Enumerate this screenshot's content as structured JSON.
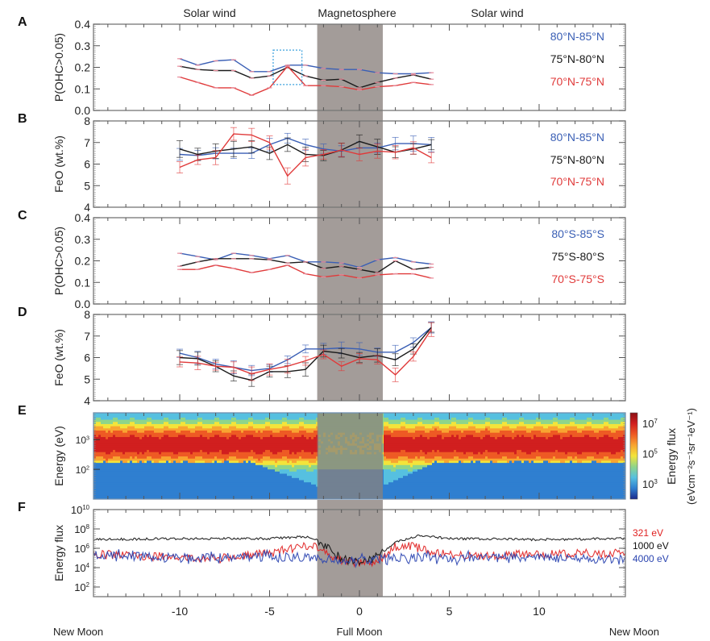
{
  "chart_data": {
    "type": "line",
    "x_axis": {
      "range": [
        -14.8,
        14.8
      ],
      "ticks": [
        -10,
        -5,
        0,
        5,
        10
      ],
      "tick_labels": [
        "-10",
        "-5",
        "0",
        "5",
        "10"
      ],
      "bottom_labels": [
        {
          "x": -14.8,
          "text": "New Moon"
        },
        {
          "x": 0,
          "text": "Full Moon"
        },
        {
          "x": 14.8,
          "text": "New Moon"
        }
      ]
    },
    "region_labels": [
      {
        "x": -10.5,
        "text": "Solar wind"
      },
      {
        "x": -0.5,
        "text": "Magnetosphere"
      },
      {
        "x": 10,
        "text": "Solar wind"
      }
    ],
    "magnetosphere_range": [
      -2.35,
      1.3
    ],
    "panels": [
      {
        "id": "A",
        "type": "line",
        "ylabel": "P(OHC>0.05)",
        "ylim": [
          0.0,
          0.4
        ],
        "yticks": [
          "0.0",
          "0.1",
          "0.2",
          "0.3",
          "0.4"
        ],
        "ytick_values": [
          0,
          0.1,
          0.2,
          0.3,
          0.4
        ],
        "x": [
          -10,
          -9,
          -8,
          -7,
          -6,
          -5,
          -4,
          -3,
          -2,
          -1,
          0,
          1,
          2,
          3,
          4
        ],
        "highlight_box": {
          "x": [
            -4.8,
            -3.2
          ],
          "y": [
            0.12,
            0.28
          ]
        },
        "series": [
          {
            "name": "80°N-85°N",
            "color": "#3a5fb5",
            "values": [
              0.24,
              0.21,
              0.23,
              0.235,
              0.18,
              0.18,
              0.21,
              0.21,
              0.195,
              0.19,
              0.19,
              0.175,
              0.17,
              0.17,
              0.175
            ]
          },
          {
            "name": "75°N-80°N",
            "color": "#1a1a1a",
            "values": [
              0.205,
              0.19,
              0.185,
              0.185,
              0.15,
              0.16,
              0.2,
              0.16,
              0.14,
              0.145,
              0.105,
              0.13,
              0.15,
              0.165,
              0.145
            ]
          },
          {
            "name": "70°N-75°N",
            "color": "#e03a3a",
            "values": [
              0.155,
              0.13,
              0.105,
              0.105,
              0.07,
              0.105,
              0.205,
              0.115,
              0.115,
              0.11,
              0.095,
              0.11,
              0.115,
              0.13,
              0.12
            ]
          }
        ]
      },
      {
        "id": "B",
        "type": "line",
        "ylabel": "FeO (wt.%)",
        "ylim": [
          4,
          8
        ],
        "yticks": [
          "4",
          "5",
          "6",
          "7",
          "8"
        ],
        "ytick_values": [
          4,
          5,
          6,
          7,
          8
        ],
        "x": [
          -10,
          -9,
          -8,
          -7,
          -6,
          -5,
          -4,
          -3,
          -2,
          -1,
          0,
          1,
          2,
          3,
          4
        ],
        "error": 0.3,
        "series": [
          {
            "name": "80°N-85°N",
            "color": "#3a5fb5",
            "values": [
              6.45,
              6.4,
              6.5,
              6.5,
              6.5,
              6.9,
              7.2,
              6.9,
              6.7,
              6.6,
              6.75,
              6.75,
              6.95,
              6.95,
              6.9
            ]
          },
          {
            "name": "75°N-80°N",
            "color": "#1a1a1a",
            "values": [
              6.7,
              6.45,
              6.6,
              6.7,
              6.8,
              6.5,
              6.9,
              6.45,
              6.4,
              6.65,
              7.05,
              6.8,
              6.55,
              6.7,
              6.9
            ]
          },
          {
            "name": "70°N-75°N",
            "color": "#e03a3a",
            "values": [
              5.85,
              6.2,
              6.3,
              7.4,
              7.35,
              7.0,
              5.45,
              6.3,
              6.45,
              6.65,
              6.45,
              6.6,
              6.55,
              6.75,
              6.3
            ]
          }
        ]
      },
      {
        "id": "C",
        "type": "line",
        "ylabel": "P(OHC>0.05)",
        "ylim": [
          0.0,
          0.4
        ],
        "yticks": [
          "0.0",
          "0.1",
          "0.2",
          "0.3",
          "0.4"
        ],
        "ytick_values": [
          0,
          0.1,
          0.2,
          0.3,
          0.4
        ],
        "x": [
          -10,
          -9,
          -8,
          -7,
          -6,
          -5,
          -4,
          -3,
          -2,
          -1,
          0,
          1,
          2,
          3,
          4
        ],
        "series": [
          {
            "name": "80°S-85°S",
            "color": "#3a5fb5",
            "values": [
              0.235,
              0.22,
              0.205,
              0.235,
              0.225,
              0.21,
              0.225,
              0.195,
              0.195,
              0.19,
              0.17,
              0.205,
              0.215,
              0.195,
              0.185
            ]
          },
          {
            "name": "75°S-80°S",
            "color": "#1a1a1a",
            "values": [
              0.175,
              0.195,
              0.21,
              0.21,
              0.21,
              0.205,
              0.19,
              0.195,
              0.165,
              0.175,
              0.16,
              0.145,
              0.2,
              0.16,
              0.17
            ]
          },
          {
            "name": "70°S-75°S",
            "color": "#e03a3a",
            "values": [
              0.16,
              0.16,
              0.18,
              0.165,
              0.145,
              0.16,
              0.18,
              0.14,
              0.125,
              0.135,
              0.12,
              0.135,
              0.14,
              0.14,
              0.12
            ]
          }
        ]
      },
      {
        "id": "D",
        "type": "line",
        "ylabel": "FeO (wt.%)",
        "ylim": [
          4,
          8
        ],
        "yticks": [
          "4",
          "5",
          "6",
          "7",
          "8"
        ],
        "ytick_values": [
          4,
          5,
          6,
          7,
          8
        ],
        "x": [
          -10,
          -9,
          -8,
          -7,
          -6,
          -5,
          -4,
          -3,
          -2,
          -1,
          0,
          1,
          2,
          3,
          4
        ],
        "error": 0.25,
        "series": [
          {
            "name": "80°S-85°S",
            "color": "#3a5fb5",
            "values": [
              6.2,
              6.0,
              5.7,
              5.55,
              5.4,
              5.5,
              5.9,
              6.4,
              6.4,
              6.45,
              6.4,
              6.25,
              6.25,
              6.7,
              7.4
            ]
          },
          {
            "name": "75°S-80°S",
            "color": "#1a1a1a",
            "values": [
              6.0,
              5.95,
              5.6,
              5.15,
              4.95,
              5.35,
              5.35,
              5.45,
              6.3,
              6.2,
              6.0,
              6.1,
              5.9,
              6.4,
              7.4
            ]
          },
          {
            "name": "70°S-75°S",
            "color": "#e03a3a",
            "values": [
              5.8,
              5.75,
              5.6,
              5.55,
              5.25,
              5.45,
              5.6,
              5.85,
              6.15,
              5.6,
              5.95,
              5.9,
              5.2,
              6.05,
              7.3
            ]
          }
        ]
      },
      {
        "id": "E",
        "type": "heatmap",
        "ylabel": "Energy (eV)",
        "yscale": "log",
        "ylim_log10": [
          1.0,
          3.9
        ],
        "yticks": [
          {
            "exp": 2,
            "label": "10",
            "sup": "2"
          },
          {
            "exp": 3,
            "label": "10",
            "sup": "3"
          }
        ],
        "colorbar": {
          "label": "Energy flux",
          "units_label": "(eVcm⁻²s⁻¹sr⁻¹eV⁻¹)",
          "range_log10": [
            2,
            7.7
          ],
          "ticks": [
            {
              "exp": 7,
              "label": "10",
              "sup": "7"
            },
            {
              "exp": 5,
              "label": "10",
              "sup": "5"
            },
            {
              "exp": 3,
              "label": "10",
              "sup": "3"
            }
          ],
          "colors": [
            "#1a2a8c",
            "#2f7fd0",
            "#56c0e0",
            "#8fd58a",
            "#f3e43a",
            "#f8a431",
            "#ee5a24",
            "#d11f1f",
            "#8b0f14"
          ]
        },
        "band_description": "Solar-wind peak flux near 10^3 eV; depleted inside magnetosphere"
      },
      {
        "id": "F",
        "type": "line",
        "ylabel": "Energy flux",
        "yscale": "log",
        "ylim_log10": [
          1,
          10
        ],
        "yticks": [
          {
            "exp": 10,
            "label": "10",
            "sup": "10"
          },
          {
            "exp": 8,
            "label": "10",
            "sup": "8"
          },
          {
            "exp": 6,
            "label": "10",
            "sup": "6"
          },
          {
            "exp": 4,
            "label": "10",
            "sup": "4"
          },
          {
            "exp": 2,
            "label": "10",
            "sup": "2"
          }
        ],
        "series": [
          {
            "name": "321 eV",
            "color": "#e02020",
            "log10_profile": {
              "x": [
                -14.8,
                -12,
                -8,
                -5,
                -3,
                -2.3,
                -1,
                0.5,
                1.3,
                2,
                3,
                4,
                6,
                10,
                14.8
              ],
              "y": [
                5.4,
                5.2,
                4.9,
                5.5,
                6.3,
                6.2,
                4.6,
                4.5,
                4.9,
                6.2,
                6.2,
                5.6,
                5.2,
                5.4,
                5.5
              ]
            }
          },
          {
            "name": "1000 eV",
            "color": "#111111",
            "log10_profile": {
              "x": [
                -14.8,
                -10,
                -5,
                -3,
                -2.3,
                -1.5,
                -1,
                0.5,
                1.3,
                2,
                3.3,
                5,
                10,
                14.8
              ],
              "y": [
                6.9,
                7.0,
                7.0,
                7.2,
                6.8,
                5.8,
                4.8,
                4.7,
                5.6,
                6.6,
                7.3,
                7.0,
                6.9,
                7.0
              ]
            }
          },
          {
            "name": "4000 eV",
            "color": "#2a44b0",
            "log10_profile": {
              "x": [
                -14.8,
                -10,
                -5,
                -3,
                -2.3,
                -1,
                0.5,
                1.3,
                3,
                6,
                10,
                14.8
              ],
              "y": [
                5.3,
                5.0,
                5.1,
                5.1,
                4.95,
                4.8,
                4.7,
                4.9,
                5.1,
                5.0,
                5.0,
                4.8
              ]
            }
          }
        ]
      }
    ]
  },
  "panel_letters": [
    "A",
    "B",
    "C",
    "D",
    "E",
    "F"
  ],
  "legends": {
    "A": [
      "80°N-85°N",
      "75°N-80°N",
      "70°N-75°N"
    ],
    "B": [
      "80°N-85°N",
      "75°N-80°N",
      "70°N-75°N"
    ],
    "C": [
      "80°S-85°S",
      "75°S-80°S",
      "70°S-75°S"
    ],
    "F": [
      "321 eV",
      "1000 eV",
      "4000 eV"
    ]
  }
}
